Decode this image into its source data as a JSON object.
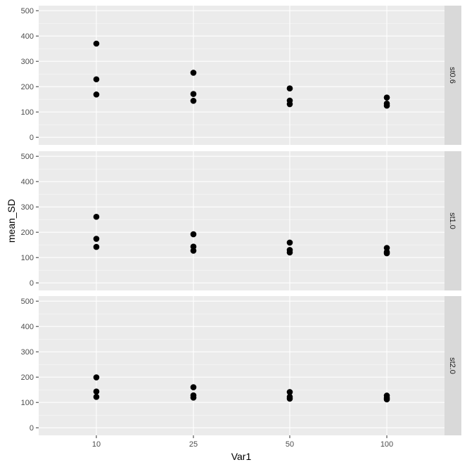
{
  "chart_data": {
    "type": "scatter",
    "xlabel": "Var1",
    "ylabel": "mean_SD",
    "x_categories": [
      "10",
      "25",
      "50",
      "100"
    ],
    "y_ticks": [
      0,
      100,
      200,
      300,
      400,
      500
    ],
    "ylim": [
      -30,
      520
    ],
    "grid": true,
    "facet_strip_position": "right",
    "panels": [
      {
        "label": "st0.6",
        "points": [
          {
            "x": "10",
            "y": 370
          },
          {
            "x": "10",
            "y": 229
          },
          {
            "x": "10",
            "y": 169
          },
          {
            "x": "25",
            "y": 255
          },
          {
            "x": "25",
            "y": 171
          },
          {
            "x": "25",
            "y": 144
          },
          {
            "x": "50",
            "y": 193
          },
          {
            "x": "50",
            "y": 145
          },
          {
            "x": "50",
            "y": 131
          },
          {
            "x": "100",
            "y": 157
          },
          {
            "x": "100",
            "y": 133
          },
          {
            "x": "100",
            "y": 125
          }
        ]
      },
      {
        "label": "st1.0",
        "points": [
          {
            "x": "10",
            "y": 261
          },
          {
            "x": "10",
            "y": 174
          },
          {
            "x": "10",
            "y": 142
          },
          {
            "x": "25",
            "y": 192
          },
          {
            "x": "25",
            "y": 143
          },
          {
            "x": "25",
            "y": 127
          },
          {
            "x": "50",
            "y": 159
          },
          {
            "x": "50",
            "y": 130
          },
          {
            "x": "50",
            "y": 120
          },
          {
            "x": "100",
            "y": 138
          },
          {
            "x": "100",
            "y": 122
          },
          {
            "x": "100",
            "y": 117
          }
        ]
      },
      {
        "label": "st2.0",
        "points": [
          {
            "x": "10",
            "y": 199
          },
          {
            "x": "10",
            "y": 143
          },
          {
            "x": "10",
            "y": 122
          },
          {
            "x": "25",
            "y": 160
          },
          {
            "x": "25",
            "y": 128
          },
          {
            "x": "25",
            "y": 119
          },
          {
            "x": "50",
            "y": 141
          },
          {
            "x": "50",
            "y": 122
          },
          {
            "x": "50",
            "y": 115
          },
          {
            "x": "100",
            "y": 127
          },
          {
            "x": "100",
            "y": 118
          },
          {
            "x": "100",
            "y": 112
          }
        ]
      }
    ],
    "colors": {
      "panel_background": "#ebebeb",
      "grid_major": "#ffffff",
      "strip_background": "#d9d9d9",
      "point": "#000000"
    }
  }
}
